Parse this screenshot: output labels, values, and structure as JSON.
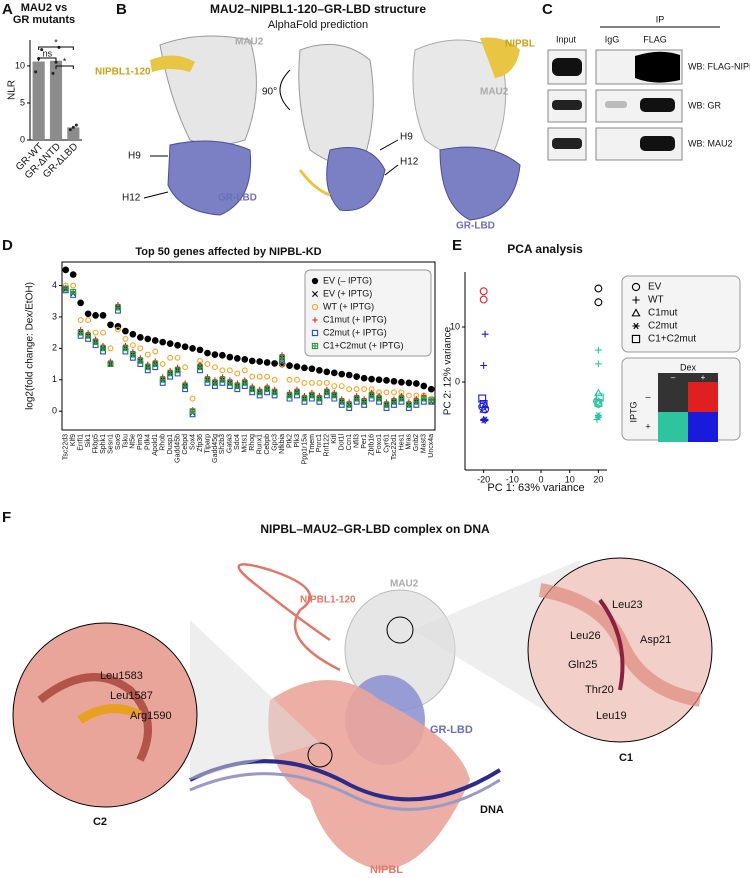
{
  "figure": {
    "panel_labels": [
      "A",
      "B",
      "C",
      "D",
      "E",
      "F"
    ],
    "B": {
      "title": "MAU2–NIPBL1-120–GR-LBD structure",
      "subtitle": "AlphaFold prediction",
      "labels": [
        "MAU2",
        "NIPBL1-120",
        "H9",
        "H12",
        "GR-LBD",
        "90°",
        "H9",
        "H12",
        "NIPBL",
        "MAU2",
        "GR-LBD"
      ]
    },
    "C": {
      "ip": "IP",
      "lanes": [
        "Input",
        "IgG",
        "FLAG"
      ],
      "blots": [
        "WB: FLAG-NIPBL",
        "WB: GR",
        "WB: MAU2"
      ]
    },
    "F": {
      "title": "NIPBL–MAU2–GR-LBD complex on DNA",
      "labels": [
        "NIPBL1-120",
        "MAU2",
        "GR-LBD",
        "DNA",
        "NIPBL"
      ],
      "c1": {
        "name": "C1",
        "residues": [
          "Leu23",
          "Leu26",
          "Asp21",
          "Gln25",
          "Thr20",
          "Leu19"
        ]
      },
      "c2": {
        "name": "C2",
        "residues": [
          "Leu1583",
          "Leu1587",
          "Arg1590"
        ]
      }
    }
  },
  "chart_data": [
    {
      "type": "bar",
      "title": [
        "MAU2 vs",
        "GR mutants"
      ],
      "ylabel": "NLR",
      "categories": [
        "GR-WT",
        "GR-ΔNTD",
        "GR-ΔLBD"
      ],
      "values": [
        10.6,
        10.7,
        1.7
      ],
      "points": [
        [
          9.2,
          11.0,
          12.2
        ],
        [
          9.0,
          10.5,
          12.5
        ],
        [
          1.4,
          1.7,
          2.0
        ]
      ],
      "color": "#8c8c8c",
      "ylim": [
        0,
        13.5
      ],
      "yticks": [
        0,
        5,
        10
      ],
      "annotations": [
        "ns",
        "*",
        "*"
      ]
    },
    {
      "type": "dot",
      "title": "Top 50 genes affected by NIPBL-KD",
      "ylabel": "log2(fold change: Dex/EtOH)",
      "categories": [
        "Tsc22d3",
        "Klf9",
        "Errfi1",
        "Sik1",
        "Fkbp5",
        "Sphk1",
        "Sesn1",
        "Sox9",
        "Tsku",
        "Nt5e",
        "Pim3",
        "Pdk4",
        "Apold1",
        "Rhob",
        "Dusp1",
        "Gadd45b",
        "Cebpd",
        "Sox4",
        "Zfp36",
        "Tiparp",
        "Gadd45g",
        "Sh2b3",
        "Gata3",
        "Sdc4",
        "Mcts1",
        "Rhog",
        "Runx1",
        "Cebpb",
        "Gpc3",
        "Nfkbia",
        "Ptk2",
        "Plk3",
        "Ppp1r15a",
        "Tmem",
        "Pnrc1",
        "Rnf122",
        "Kitl",
        "Dot1l",
        "Ccn1",
        "Nfil3",
        "Per1",
        "Zbtb16",
        "Foxo1",
        "Cyr61",
        "Tsc22d1",
        "Hes1",
        "Mras",
        "Gnb2",
        "Mast3",
        "Uncx4a"
      ],
      "ylim": [
        -0.6,
        4.75
      ],
      "yticks": [
        0,
        1,
        2,
        3,
        4
      ],
      "series": [
        {
          "name": "EV (– IPTG)",
          "color": "#000000",
          "marker": "filled-circle",
          "values": [
            4.5,
            4.35,
            3.45,
            3.1,
            3.05,
            3.05,
            2.75,
            2.7,
            2.55,
            2.45,
            2.35,
            2.3,
            2.25,
            2.2,
            2.15,
            2.1,
            2.05,
            2.0,
            1.95,
            1.85,
            1.8,
            1.78,
            1.72,
            1.68,
            1.65,
            1.6,
            1.58,
            1.55,
            1.52,
            1.5,
            1.45,
            1.42,
            1.38,
            1.35,
            1.3,
            1.25,
            1.22,
            1.18,
            1.15,
            1.1,
            1.05,
            1.02,
            1.0,
            0.98,
            0.95,
            0.92,
            0.9,
            0.88,
            0.8,
            0.7
          ]
        },
        {
          "name": "EV (+ IPTG)",
          "color": "#000000",
          "marker": "x",
          "values": [
            3.9,
            3.75,
            2.5,
            2.4,
            2.2,
            2.0,
            1.5,
            3.3,
            2.0,
            1.8,
            1.6,
            1.4,
            1.5,
            1.0,
            1.2,
            1.3,
            0.8,
            -0.05,
            1.4,
            1.0,
            0.9,
            1.0,
            0.9,
            0.8,
            0.9,
            0.7,
            0.6,
            0.7,
            0.6,
            1.7,
            0.5,
            0.6,
            0.4,
            0.5,
            0.4,
            0.6,
            0.5,
            0.3,
            0.2,
            0.4,
            0.3,
            0.5,
            0.4,
            0.2,
            0.3,
            0.4,
            0.2,
            0.3,
            0.4,
            0.3
          ]
        },
        {
          "name": "WT (+ IPTG)",
          "color": "#f5a623",
          "marker": "circle",
          "values": [
            4.0,
            4.0,
            2.9,
            2.9,
            2.5,
            2.5,
            2.0,
            2.6,
            2.3,
            2.1,
            2.0,
            1.8,
            1.9,
            1.5,
            1.7,
            1.7,
            1.4,
            0.4,
            1.6,
            1.5,
            1.4,
            1.3,
            1.3,
            1.2,
            1.3,
            1.1,
            1.1,
            1.1,
            1.0,
            1.5,
            1.0,
            1.0,
            0.9,
            0.9,
            0.9,
            0.9,
            0.8,
            0.8,
            0.7,
            0.7,
            0.7,
            0.7,
            0.6,
            0.6,
            0.6,
            0.6,
            0.5,
            0.5,
            0.5,
            0.4
          ]
        },
        {
          "name": "C1mut (+ IPTG)",
          "color": "#e02020",
          "marker": "plus",
          "values": [
            3.95,
            3.8,
            2.6,
            2.5,
            2.3,
            2.1,
            1.6,
            3.4,
            2.1,
            1.9,
            1.7,
            1.5,
            1.6,
            1.1,
            1.3,
            1.4,
            0.9,
            0.05,
            1.5,
            1.1,
            1.0,
            1.1,
            1.0,
            0.9,
            1.0,
            0.8,
            0.7,
            0.8,
            0.7,
            1.8,
            0.6,
            0.7,
            0.5,
            0.6,
            0.5,
            0.7,
            0.6,
            0.4,
            0.3,
            0.5,
            0.4,
            0.6,
            0.5,
            0.3,
            0.4,
            0.5,
            0.3,
            0.4,
            0.5,
            0.35
          ]
        },
        {
          "name": "C2mut (+ IPTG)",
          "color": "#2a4fd6",
          "marker": "square",
          "values": [
            3.85,
            3.7,
            2.4,
            2.3,
            2.1,
            1.9,
            1.5,
            3.2,
            1.9,
            1.7,
            1.5,
            1.3,
            1.4,
            0.9,
            1.1,
            1.2,
            0.7,
            -0.1,
            1.3,
            0.9,
            0.8,
            0.9,
            0.8,
            0.7,
            0.8,
            0.6,
            0.5,
            0.6,
            0.5,
            1.6,
            0.4,
            0.5,
            0.3,
            0.4,
            0.3,
            0.5,
            0.4,
            0.2,
            0.1,
            0.3,
            0.2,
            0.4,
            0.3,
            0.1,
            0.2,
            0.3,
            0.1,
            0.2,
            0.3,
            0.3
          ]
        },
        {
          "name": "C1+C2mut (+ IPTG)",
          "color": "#2e9a3a",
          "marker": "square-plus",
          "values": [
            3.9,
            3.8,
            2.5,
            2.4,
            2.2,
            2.0,
            1.5,
            3.3,
            2.0,
            1.8,
            1.6,
            1.4,
            1.5,
            1.0,
            1.2,
            1.3,
            0.8,
            0.0,
            1.4,
            1.0,
            0.9,
            1.0,
            0.9,
            0.8,
            0.9,
            0.7,
            0.6,
            0.7,
            0.6,
            1.7,
            0.5,
            0.6,
            0.4,
            0.5,
            0.4,
            0.6,
            0.5,
            0.3,
            0.2,
            0.4,
            0.3,
            0.5,
            0.4,
            0.2,
            0.3,
            0.4,
            0.2,
            0.3,
            0.4,
            0.35
          ]
        }
      ]
    },
    {
      "type": "scatter",
      "title": "PCA analysis",
      "xlabel": "PC 1: 63% variance",
      "ylabel": "PC 2: 12% variance",
      "xlim": [
        -26.5,
        23
      ],
      "xticks": [
        -20,
        -10,
        0,
        10,
        20
      ],
      "ylim": [
        -16,
        20
      ],
      "yticks": [
        0,
        10
      ],
      "series": [
        {
          "name": "EV",
          "marker": "circle",
          "x": [
            -20,
            -20,
            20,
            20,
            -20.5,
            -19.5,
            19.5,
            20
          ],
          "y": [
            16.5,
            15,
            17,
            14.5,
            -4.5,
            -5,
            -3.5,
            -4
          ],
          "colors": [
            "#e02020",
            "#e02020",
            "#000000",
            "#000000",
            "#1a1adc",
            "#1a1adc",
            "#2ec4a0",
            "#2ec4a0"
          ]
        },
        {
          "name": "WT",
          "marker": "plus",
          "x": [
            -19.5,
            -20,
            20,
            20,
            -20,
            -19.5,
            20,
            19.5
          ],
          "y": [
            8.7,
            3,
            5.8,
            3.3,
            -6.8,
            -7,
            -6.2,
            -6.8
          ],
          "colors": [
            "#1a1adc",
            "#1a1adc",
            "#2ec4a0",
            "#2ec4a0",
            "#1a1adc",
            "#1a1adc",
            "#2ec4a0",
            "#2ec4a0"
          ]
        },
        {
          "name": "C1mut",
          "marker": "triangle",
          "x": [
            -20,
            -19.5,
            20,
            20
          ],
          "y": [
            -5,
            -4.2,
            -2,
            -3.8
          ],
          "colors": [
            "#1a1adc",
            "#1a1adc",
            "#2ec4a0",
            "#2ec4a0"
          ]
        },
        {
          "name": "C2mut",
          "marker": "asterisk",
          "x": [
            -20,
            -19.5,
            20,
            20
          ],
          "y": [
            -7,
            -6.8,
            -6,
            -6.5
          ],
          "colors": [
            "#1a1adc",
            "#1a1adc",
            "#2ec4a0",
            "#2ec4a0"
          ]
        },
        {
          "name": "C1+C2mut",
          "marker": "square",
          "x": [
            -20.5,
            -20,
            20,
            20.5
          ],
          "y": [
            -3,
            -4,
            -3.8,
            -2.8
          ],
          "colors": [
            "#1a1adc",
            "#1a1adc",
            "#2ec4a0",
            "#2ec4a0"
          ]
        }
      ],
      "condition_legend": {
        "column_title": "Dex",
        "row_title": "IPTG",
        "levels": [
          "–",
          "+"
        ],
        "colors": [
          [
            "#333333",
            "#e02020"
          ],
          [
            "#2ec4a0",
            "#1a1adc"
          ]
        ]
      }
    }
  ]
}
